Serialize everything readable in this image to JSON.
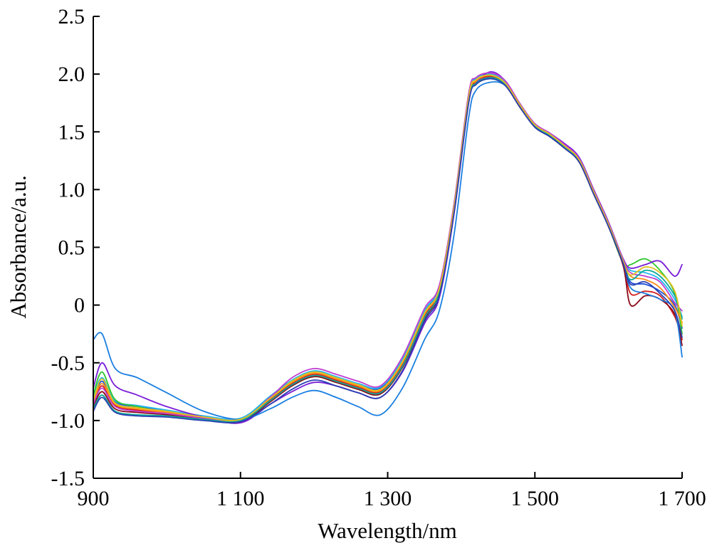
{
  "chart_data": {
    "type": "line",
    "title": "",
    "xlabel": "Wavelength/nm",
    "ylabel": "Absorbance/a.u.",
    "xlim": [
      900,
      1700
    ],
    "ylim": [
      -1.5,
      2.5
    ],
    "grid": false,
    "legend": "none",
    "x_ticks": [
      {
        "value": 900,
        "label": "900"
      },
      {
        "value": 1100,
        "label": "1 100"
      },
      {
        "value": 1300,
        "label": "1 300"
      },
      {
        "value": 1500,
        "label": "1 500"
      },
      {
        "value": 1700,
        "label": "1 700"
      }
    ],
    "y_ticks": [
      {
        "value": 2.5,
        "label": "2.5"
      },
      {
        "value": 2.0,
        "label": "2.0"
      },
      {
        "value": 1.5,
        "label": "1.5"
      },
      {
        "value": 1.0,
        "label": "1.0"
      },
      {
        "value": 0.5,
        "label": "0.5"
      },
      {
        "value": 0,
        "label": "0"
      },
      {
        "value": -0.5,
        "label": "-0.5"
      },
      {
        "value": -1.0,
        "label": "-1.0"
      },
      {
        "value": -1.5,
        "label": "-1.5"
      }
    ],
    "x": [
      900,
      912,
      930,
      960,
      1000,
      1050,
      1100,
      1140,
      1170,
      1200,
      1230,
      1260,
      1290,
      1320,
      1350,
      1370,
      1390,
      1410,
      1420,
      1440,
      1460,
      1480,
      1500,
      1520,
      1540,
      1560,
      1580,
      1600,
      1620,
      1630,
      1650,
      1670,
      1690,
      1700
    ],
    "series": [
      {
        "color": "#1f4fd8",
        "values": [
          -0.82,
          -0.66,
          -0.84,
          -0.88,
          -0.92,
          -0.97,
          -0.99,
          -0.8,
          -0.66,
          -0.58,
          -0.63,
          -0.69,
          -0.72,
          -0.48,
          -0.06,
          0.15,
          0.85,
          1.8,
          1.95,
          2.0,
          1.93,
          1.74,
          1.56,
          1.48,
          1.38,
          1.26,
          0.98,
          0.7,
          0.38,
          0.2,
          0.18,
          0.12,
          0.0,
          -0.2
        ]
      },
      {
        "color": "#d42020",
        "values": [
          -0.85,
          -0.7,
          -0.87,
          -0.91,
          -0.94,
          -0.98,
          -1.0,
          -0.82,
          -0.68,
          -0.6,
          -0.65,
          -0.71,
          -0.75,
          -0.52,
          -0.1,
          0.12,
          0.82,
          1.78,
          1.93,
          1.98,
          1.91,
          1.72,
          1.55,
          1.47,
          1.37,
          1.25,
          0.97,
          0.69,
          0.37,
          0.1,
          0.12,
          0.08,
          -0.1,
          -0.3
        ]
      },
      {
        "color": "#22b8f0",
        "values": [
          -0.8,
          -0.63,
          -0.83,
          -0.87,
          -0.91,
          -0.96,
          -0.98,
          -0.79,
          -0.65,
          -0.57,
          -0.62,
          -0.68,
          -0.71,
          -0.47,
          -0.05,
          0.16,
          0.86,
          1.82,
          1.96,
          2.0,
          1.93,
          1.73,
          1.56,
          1.48,
          1.39,
          1.27,
          0.99,
          0.71,
          0.39,
          0.3,
          0.28,
          0.22,
          0.05,
          -0.1
        ]
      },
      {
        "color": "#2fc82f",
        "values": [
          -0.78,
          -0.58,
          -0.82,
          -0.88,
          -0.93,
          -0.98,
          -1.0,
          -0.83,
          -0.7,
          -0.62,
          -0.67,
          -0.73,
          -0.77,
          -0.54,
          -0.12,
          0.1,
          0.8,
          1.76,
          1.91,
          1.96,
          1.9,
          1.71,
          1.54,
          1.46,
          1.36,
          1.24,
          0.96,
          0.68,
          0.36,
          0.35,
          0.4,
          0.3,
          0.1,
          -0.25
        ]
      },
      {
        "color": "#7a1fd8",
        "values": [
          -0.72,
          -0.5,
          -0.7,
          -0.78,
          -0.88,
          -0.97,
          -1.02,
          -0.86,
          -0.75,
          -0.67,
          -0.7,
          -0.76,
          -0.8,
          -0.58,
          -0.16,
          0.06,
          0.78,
          1.75,
          1.92,
          2.02,
          1.94,
          1.74,
          1.57,
          1.49,
          1.4,
          1.28,
          1.0,
          0.72,
          0.4,
          0.32,
          0.35,
          0.38,
          0.25,
          0.35
        ]
      },
      {
        "color": "#ff8c1a",
        "values": [
          -0.84,
          -0.68,
          -0.86,
          -0.9,
          -0.93,
          -0.97,
          -0.99,
          -0.81,
          -0.67,
          -0.59,
          -0.64,
          -0.7,
          -0.74,
          -0.5,
          -0.08,
          0.13,
          0.83,
          1.79,
          1.94,
          1.99,
          1.92,
          1.73,
          1.55,
          1.47,
          1.38,
          1.26,
          0.98,
          0.7,
          0.38,
          0.25,
          0.22,
          0.15,
          -0.02,
          -0.15
        ]
      },
      {
        "color": "#8b0a1a",
        "values": [
          -0.88,
          -0.75,
          -0.9,
          -0.93,
          -0.95,
          -0.99,
          -1.01,
          -0.84,
          -0.7,
          -0.62,
          -0.67,
          -0.73,
          -0.77,
          -0.54,
          -0.12,
          0.1,
          0.8,
          1.76,
          1.91,
          1.97,
          1.9,
          1.71,
          1.54,
          1.46,
          1.36,
          1.24,
          0.96,
          0.68,
          0.34,
          0.0,
          0.08,
          0.05,
          -0.08,
          -0.35
        ]
      },
      {
        "color": "#1a7fe0",
        "values": [
          -0.3,
          -0.25,
          -0.55,
          -0.63,
          -0.76,
          -0.92,
          -0.99,
          -0.9,
          -0.8,
          -0.74,
          -0.8,
          -0.88,
          -0.95,
          -0.72,
          -0.3,
          -0.05,
          0.6,
          1.62,
          1.86,
          1.93,
          1.9,
          1.72,
          1.55,
          1.47,
          1.38,
          1.26,
          0.98,
          0.7,
          0.36,
          0.15,
          0.1,
          0.05,
          -0.05,
          -0.45
        ]
      },
      {
        "color": "#c03fd0",
        "values": [
          -0.86,
          -0.72,
          -0.88,
          -0.92,
          -0.94,
          -0.98,
          -1.0,
          -0.8,
          -0.63,
          -0.55,
          -0.6,
          -0.66,
          -0.7,
          -0.45,
          -0.03,
          0.17,
          0.87,
          1.83,
          1.97,
          2.01,
          1.94,
          1.74,
          1.57,
          1.49,
          1.39,
          1.27,
          0.99,
          0.71,
          0.39,
          0.28,
          0.25,
          0.2,
          0.02,
          -0.05
        ]
      },
      {
        "color": "#10a89a",
        "values": [
          -0.9,
          -0.78,
          -0.92,
          -0.95,
          -0.96,
          -0.99,
          -1.0,
          -0.83,
          -0.69,
          -0.61,
          -0.66,
          -0.72,
          -0.76,
          -0.53,
          -0.11,
          0.11,
          0.81,
          1.77,
          1.92,
          1.97,
          1.91,
          1.72,
          1.55,
          1.47,
          1.37,
          1.25,
          0.97,
          0.69,
          0.37,
          0.22,
          0.3,
          0.25,
          0.08,
          -0.12
        ]
      },
      {
        "color": "#e0c020",
        "values": [
          -0.83,
          -0.64,
          -0.85,
          -0.89,
          -0.92,
          -0.97,
          -0.99,
          -0.81,
          -0.66,
          -0.58,
          -0.63,
          -0.69,
          -0.73,
          -0.49,
          -0.07,
          0.14,
          0.84,
          1.8,
          1.95,
          1.99,
          1.92,
          1.73,
          1.56,
          1.48,
          1.38,
          1.26,
          0.98,
          0.7,
          0.38,
          0.26,
          0.33,
          0.28,
          0.12,
          -0.18
        ]
      },
      {
        "color": "#2a3fb0",
        "values": [
          -0.92,
          -0.8,
          -0.93,
          -0.96,
          -0.97,
          -1.0,
          -1.01,
          -0.86,
          -0.73,
          -0.65,
          -0.7,
          -0.76,
          -0.8,
          -0.57,
          -0.14,
          0.08,
          0.79,
          1.75,
          1.91,
          1.96,
          1.9,
          1.71,
          1.54,
          1.46,
          1.36,
          1.24,
          0.96,
          0.68,
          0.36,
          0.18,
          0.2,
          0.1,
          -0.05,
          -0.28
        ]
      }
    ]
  }
}
